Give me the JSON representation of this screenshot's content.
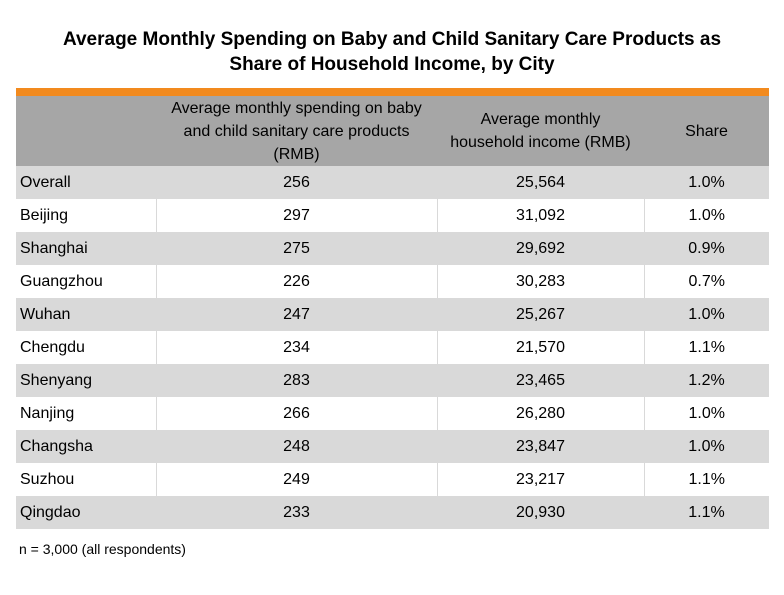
{
  "title": {
    "line1": "Average Monthly Spending on Baby and Child Sanitary Care Products as",
    "line2": "Share of Household Income, by City"
  },
  "colors": {
    "accent": "#f28a1e",
    "header_bg": "#a6a6a6",
    "stripe_bg": "#d9d9d9"
  },
  "table": {
    "headers": [
      "",
      "Average monthly spending on baby and child sanitary care products (RMB)",
      "Average monthly household income (RMB)",
      "Share"
    ],
    "rows": [
      [
        "Overall",
        "256",
        "25,564",
        "1.0%"
      ],
      [
        "Beijing",
        "297",
        "31,092",
        "1.0%"
      ],
      [
        "Shanghai",
        "275",
        "29,692",
        "0.9%"
      ],
      [
        "Guangzhou",
        "226",
        "30,283",
        "0.7%"
      ],
      [
        "Wuhan",
        "247",
        "25,267",
        "1.0%"
      ],
      [
        "Chengdu",
        "234",
        "21,570",
        "1.1%"
      ],
      [
        "Shenyang",
        "283",
        "23,465",
        "1.2%"
      ],
      [
        "Nanjing",
        "266",
        "26,280",
        "1.0%"
      ],
      [
        "Changsha",
        "248",
        "23,847",
        "1.0%"
      ],
      [
        "Suzhou",
        "249",
        "23,217",
        "1.1%"
      ],
      [
        "Qingdao",
        "233",
        "20,930",
        "1.1%"
      ]
    ]
  },
  "note": "n = 3,000 (all respondents)"
}
